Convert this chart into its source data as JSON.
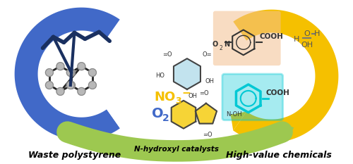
{
  "fig_width": 5.0,
  "fig_height": 2.33,
  "dpi": 100,
  "bg_color": "#ffffff",
  "left_arrow_color": "#4169c8",
  "right_arrow_color": "#f5c000",
  "green_arrow_color": "#9dc850",
  "no3_color": "#f5c000",
  "o2_color": "#4169c8",
  "cyan_color": "#00c8d4",
  "peach_color": "#f4c090",
  "yellow_mol_color": "#f5d020",
  "lightblue_mol_color": "#a8d8e8",
  "text_left": "Waste polystyrene",
  "text_right": "High-value chemicals",
  "text_catalyst": "N-hydroxyl catalysts",
  "text_no3": "NO",
  "text_no3_sub": "3",
  "text_no3_sup": "−",
  "text_o2": "O",
  "text_o2_sub": "2",
  "gray_ball": "#b8b8b8",
  "dark_blue_chain": "#1a3060"
}
